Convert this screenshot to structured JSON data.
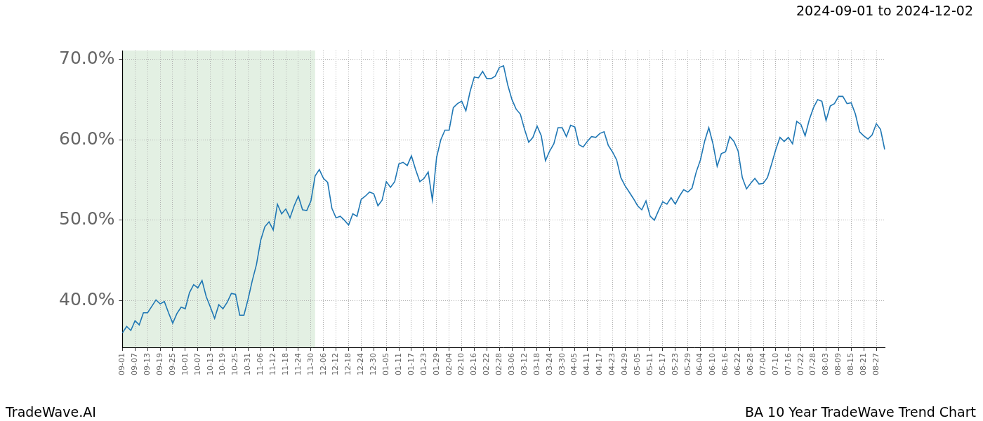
{
  "chart_data": {
    "type": "line",
    "title": "2024-09-01 to 2024-12-02",
    "footer": [
      "TradeWave.AI",
      "BA 10 Year TradeWave Trend Chart"
    ],
    "categories": [
      "09-01",
      null,
      null,
      "09-07",
      null,
      null,
      "09-13",
      null,
      null,
      "09-19",
      null,
      null,
      "09-25",
      null,
      null,
      "10-01",
      null,
      null,
      "10-07",
      null,
      null,
      "10-13",
      null,
      null,
      "10-19",
      null,
      null,
      "10-25",
      null,
      null,
      "10-31",
      null,
      null,
      "11-06",
      null,
      null,
      "11-12",
      null,
      null,
      "11-18",
      null,
      null,
      "11-24",
      null,
      null,
      "11-30",
      null,
      null,
      "12-06",
      null,
      null,
      "12-12",
      null,
      null,
      "12-18",
      null,
      null,
      "12-24",
      null,
      null,
      "12-30",
      null,
      null,
      "01-05",
      null,
      null,
      "01-11",
      null,
      null,
      "01-17",
      null,
      null,
      "01-23",
      null,
      null,
      "01-29",
      null,
      null,
      "02-04",
      null,
      null,
      "02-10",
      null,
      null,
      "02-16",
      null,
      null,
      "02-22",
      null,
      null,
      "02-28",
      null,
      null,
      "03-06",
      null,
      null,
      "03-12",
      null,
      null,
      "03-18",
      null,
      null,
      "03-24",
      null,
      null,
      "03-30",
      null,
      null,
      "04-05",
      null,
      null,
      "04-11",
      null,
      null,
      "04-17",
      null,
      null,
      "04-23",
      null,
      null,
      "04-29",
      null,
      null,
      "05-05",
      null,
      null,
      "05-11",
      null,
      null,
      "05-17",
      null,
      null,
      "05-23",
      null,
      null,
      "05-29",
      null,
      null,
      "06-04",
      null,
      null,
      "06-10",
      null,
      null,
      "06-16",
      null,
      null,
      "06-22",
      null,
      null,
      "06-28",
      null,
      null,
      "07-04",
      null,
      null,
      "07-10",
      null,
      null,
      "07-16",
      null,
      null,
      "07-22",
      null,
      null,
      "07-28",
      null,
      null,
      "08-03",
      null,
      null,
      "08-09",
      null,
      null,
      "08-15",
      null,
      null,
      "08-21",
      null,
      null,
      "08-27",
      null,
      null
    ],
    "values": [
      36.0,
      36.8,
      36.3,
      37.5,
      37.0,
      38.5,
      38.5,
      39.3,
      40.1,
      39.6,
      39.9,
      38.5,
      37.2,
      38.4,
      39.2,
      39.0,
      41.0,
      42.0,
      41.6,
      42.5,
      40.5,
      39.2,
      37.8,
      39.5,
      39.0,
      39.8,
      40.9,
      40.8,
      38.2,
      38.2,
      40.2,
      42.5,
      44.5,
      47.5,
      49.2,
      49.8,
      48.8,
      52.0,
      50.8,
      51.4,
      50.3,
      51.8,
      53.0,
      51.3,
      51.2,
      52.4,
      55.5,
      56.3,
      55.2,
      54.7,
      51.5,
      50.3,
      50.5,
      50.0,
      49.4,
      50.8,
      50.5,
      52.6,
      53.0,
      53.5,
      53.3,
      51.8,
      52.5,
      54.8,
      54.1,
      54.8,
      57.0,
      57.2,
      56.8,
      58.0,
      56.3,
      54.8,
      55.2,
      56.0,
      52.5,
      57.8,
      60.0,
      61.2,
      61.2,
      64.0,
      64.5,
      64.8,
      63.6,
      66.0,
      67.8,
      67.7,
      68.5,
      67.6,
      67.6,
      67.9,
      69.0,
      69.2,
      66.8,
      65.0,
      63.8,
      63.2,
      61.3,
      59.7,
      60.3,
      61.7,
      60.5,
      57.4,
      58.6,
      59.5,
      61.5,
      61.5,
      60.4,
      61.8,
      61.6,
      59.4,
      59.1,
      59.8,
      60.4,
      60.3,
      60.8,
      61.0,
      59.3,
      58.5,
      57.5,
      55.3,
      54.3,
      53.5,
      52.7,
      51.8,
      51.3,
      52.4,
      50.5,
      50.0,
      51.2,
      52.3,
      52.0,
      52.8,
      52.0,
      53.0,
      53.8,
      53.5,
      54.0,
      56.0,
      57.5,
      59.8,
      61.5,
      59.5,
      56.7,
      58.3,
      58.5,
      60.4,
      59.8,
      58.6,
      55.3,
      53.9,
      54.6,
      55.2,
      54.5,
      54.6,
      55.3,
      57.0,
      58.8,
      60.3,
      59.8,
      60.3,
      59.5,
      62.3,
      61.9,
      60.5,
      62.5,
      64.0,
      65.0,
      64.8,
      62.4,
      64.2,
      64.5,
      65.4,
      65.4,
      64.5,
      64.6,
      63.2,
      61.0,
      60.5,
      60.1,
      60.6,
      62.0,
      61.3,
      58.8
    ],
    "color": "#1f77b4",
    "ylim": [
      34.2,
      71.1
    ],
    "yticks": [
      {
        "value": 40,
        "label": "40.0%"
      },
      {
        "value": 50,
        "label": "50.0%"
      },
      {
        "value": 60,
        "label": "60.0%"
      },
      {
        "value": 70,
        "label": "70.0%"
      }
    ],
    "grid": true,
    "highlight": [
      "09-01",
      "12-02"
    ]
  }
}
